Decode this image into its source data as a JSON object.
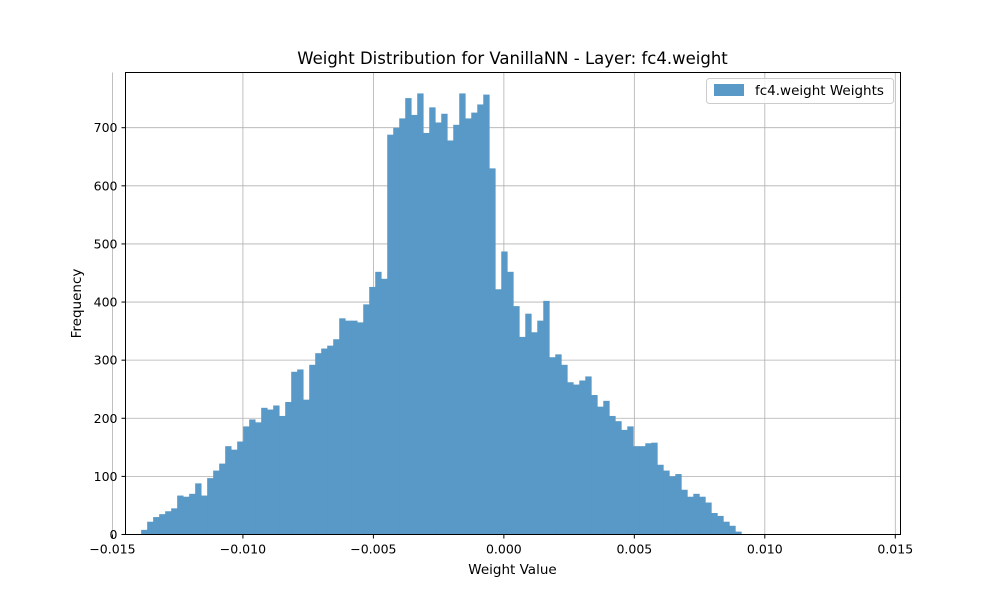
{
  "chart_data": {
    "type": "bar",
    "title": "Weight Distribution for VanillaNN - Layer: fc4.weight",
    "xlabel": "Weight Value",
    "ylabel": "Frequency",
    "xlim": [
      -0.0145,
      0.0152
    ],
    "ylim": [
      0,
      795
    ],
    "xticks": [
      -0.015,
      -0.01,
      -0.005,
      0.0,
      0.005,
      0.01,
      0.015
    ],
    "xtick_labels": [
      "−0.015",
      "−0.010",
      "−0.005",
      "0.000",
      "0.005",
      "0.010",
      "0.015"
    ],
    "yticks": [
      0,
      100,
      200,
      300,
      400,
      500,
      600,
      700
    ],
    "ytick_labels": [
      "0",
      "100",
      "200",
      "300",
      "400",
      "500",
      "600",
      "700"
    ],
    "grid": true,
    "legend_position": "top-right",
    "bin_start": -0.0139,
    "bin_width": 0.00023,
    "series": [
      {
        "name": "fc4.weight Weights",
        "color": "#5899c7",
        "values": [
          8,
          22,
          30,
          35,
          40,
          45,
          67,
          65,
          70,
          88,
          67,
          97,
          110,
          122,
          152,
          146,
          160,
          186,
          198,
          193,
          218,
          215,
          222,
          204,
          228,
          280,
          284,
          232,
          292,
          312,
          320,
          325,
          336,
          372,
          368,
          368,
          365,
          396,
          426,
          452,
          440,
          688,
          700,
          716,
          751,
          722,
          759,
          691,
          735,
          709,
          724,
          678,
          705,
          759,
          716,
          726,
          740,
          757,
          630,
          422,
          487,
          452,
          393,
          340,
          380,
          348,
          368,
          402,
          305,
          310,
          292,
          262,
          258,
          265,
          272,
          240,
          220,
          230,
          204,
          195,
          180,
          186,
          152,
          152,
          157,
          158,
          120,
          110,
          100,
          104,
          77,
          65,
          70,
          65,
          55,
          37,
          32,
          22,
          15,
          5
        ]
      }
    ]
  }
}
